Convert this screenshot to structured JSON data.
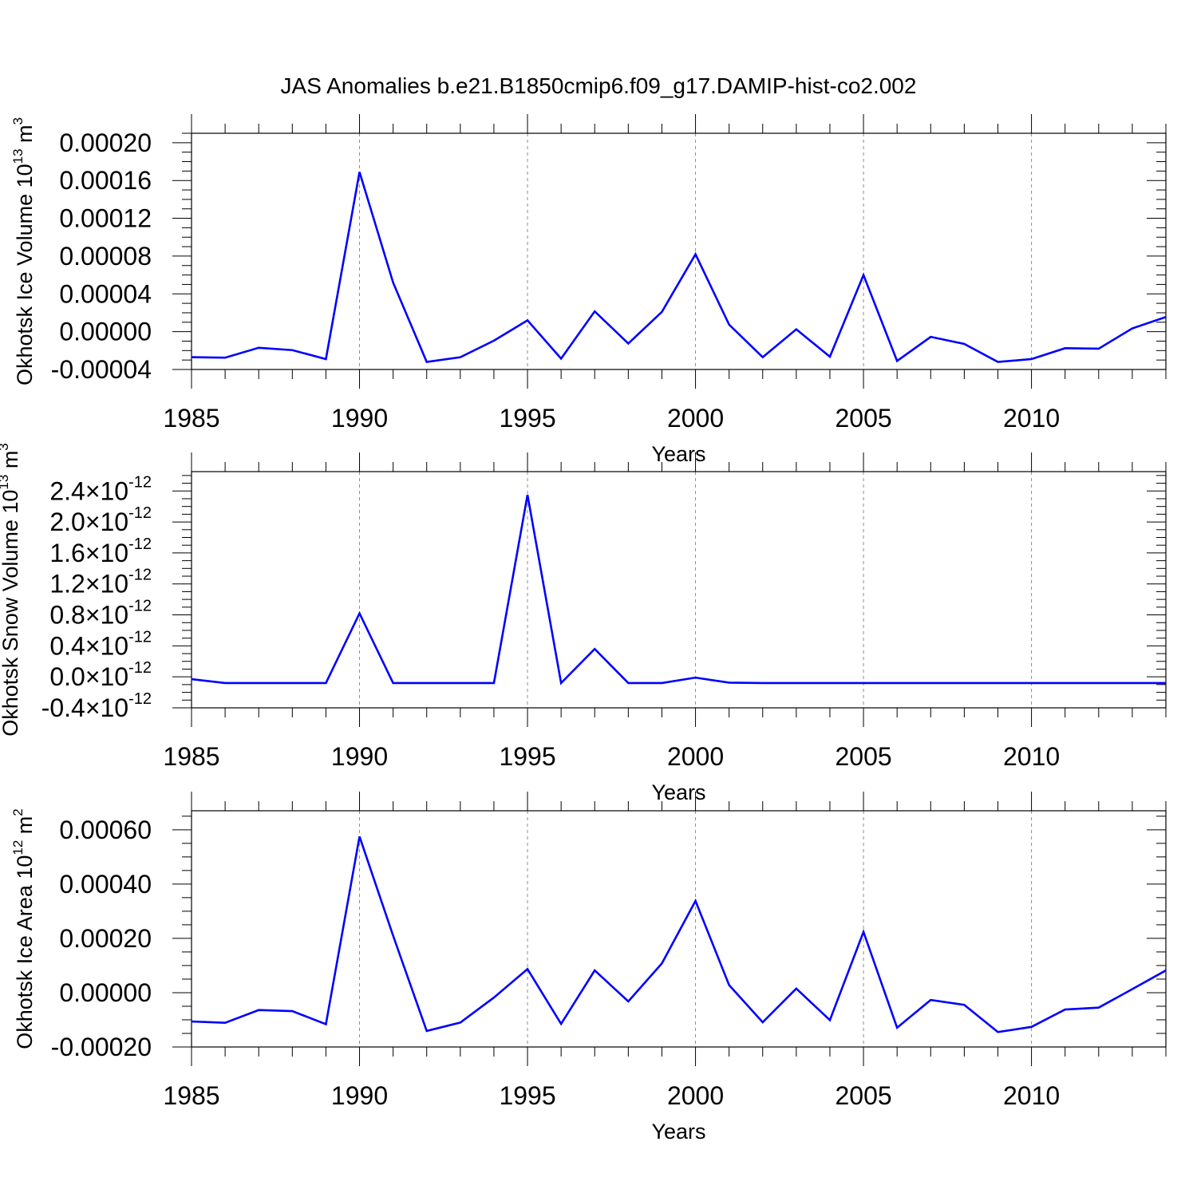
{
  "title": "JAS Anomalies b.e21.B1850cmip6.f09_g17.DAMIP-hist-co2.002",
  "colors": {
    "line": "#0000ff",
    "axis": "#000000",
    "grid": "#8c8c8c"
  },
  "chart_data": [
    {
      "type": "line",
      "title": "",
      "xlabel": "Years",
      "ylabel": {
        "base": "Okhotsk Ice Volume 10",
        "exp": "13",
        "unit": " m",
        "unit_exp": "3"
      },
      "xlim": [
        1985,
        2014
      ],
      "ylim": [
        -4e-05,
        0.0002
      ],
      "ydisplay": [
        -4e-05,
        0.00021
      ],
      "xticks": [
        1985,
        1990,
        1995,
        2000,
        2005,
        2010
      ],
      "xtick_labels": [
        "1985",
        "1990",
        "1995",
        "2000",
        "2005",
        "2010"
      ],
      "yticks": [
        -4e-05,
        0.0,
        4e-05,
        8e-05,
        0.00012,
        0.00016,
        0.0002
      ],
      "ytick_labels": [
        "-0.00004",
        "0.00000",
        "0.00004",
        "0.00008",
        "0.00012",
        "0.00016",
        "0.00020"
      ],
      "ytick_style": "plain",
      "grid": "x-dashed",
      "x": [
        1985,
        1986,
        1987,
        1988,
        1989,
        1990,
        1991,
        1992,
        1993,
        1994,
        1995,
        1996,
        1997,
        1998,
        1999,
        2000,
        2001,
        2002,
        2003,
        2004,
        2005,
        2006,
        2007,
        2008,
        2009,
        2010,
        2011,
        2012,
        2013,
        2014
      ],
      "series": [
        {
          "values": [
            -2.7e-05,
            -2.75e-05,
            -1.7e-05,
            -1.95e-05,
            -2.9e-05,
            0.000169,
            5.2e-05,
            -3.2e-05,
            -2.7e-05,
            -9.5e-06,
            1.2e-05,
            -2.85e-05,
            2.15e-05,
            -1.25e-05,
            2.1e-05,
            8.2e-05,
            7.5e-06,
            -2.7e-05,
            2.5e-06,
            -2.65e-05,
            6e-05,
            -3.1e-05,
            -5.5e-06,
            -1.3e-05,
            -3.2e-05,
            -2.9e-05,
            -1.75e-05,
            -1.8e-05,
            3.5e-06,
            1.55e-05
          ]
        }
      ]
    },
    {
      "type": "line",
      "title": "",
      "xlabel": "Years",
      "ylabel": {
        "base": "Okhotsk Snow Volume 10",
        "exp": "13",
        "unit": " m",
        "unit_exp": "3"
      },
      "xlim": [
        1985,
        2014
      ],
      "ylim": [
        -4e-13,
        2.4e-12
      ],
      "ydisplay": [
        -4e-13,
        2.65e-12
      ],
      "xticks": [
        1985,
        1990,
        1995,
        2000,
        2005,
        2010
      ],
      "xtick_labels": [
        "1985",
        "1990",
        "1995",
        "2000",
        "2005",
        "2010"
      ],
      "yticks": [
        -4e-13,
        0,
        4e-13,
        8e-13,
        1.2e-12,
        1.6e-12,
        2e-12,
        2.4e-12
      ],
      "ytick_labels": [
        "-0.4",
        "0.0",
        "0.4",
        "0.8",
        "1.2",
        "1.6",
        "2.0",
        "2.4"
      ],
      "ytick_sci": {
        "base": "10",
        "exp": "-12"
      },
      "ytick_style": "sci",
      "grid": "x-dashed",
      "x": [
        1985,
        1986,
        1987,
        1988,
        1989,
        1990,
        1991,
        1992,
        1993,
        1994,
        1995,
        1996,
        1997,
        1998,
        1999,
        2000,
        2001,
        2002,
        2003,
        2004,
        2005,
        2006,
        2007,
        2008,
        2009,
        2010,
        2011,
        2012,
        2013,
        2014
      ],
      "series": [
        {
          "values": [
            -3e-14,
            -8e-14,
            -8e-14,
            -8e-14,
            -8e-14,
            8.2e-13,
            -8e-14,
            -8e-14,
            -8e-14,
            -8e-14,
            2.35e-12,
            -8e-14,
            3.6e-13,
            -8e-14,
            -8e-14,
            -1e-14,
            -7.5e-14,
            -8e-14,
            -8e-14,
            -8e-14,
            -8e-14,
            -8e-14,
            -8e-14,
            -8e-14,
            -8e-14,
            -8e-14,
            -8e-14,
            -8e-14,
            -8e-14,
            -8e-14
          ]
        }
      ]
    },
    {
      "type": "line",
      "title": "",
      "xlabel": "Years",
      "ylabel": {
        "base": "Okhotsk Ice Area 10",
        "exp": "12",
        "unit": " m",
        "unit_exp": "2"
      },
      "xlim": [
        1985,
        2014
      ],
      "ylim": [
        -0.0002,
        0.0006
      ],
      "ydisplay": [
        -0.0002,
        0.00067
      ],
      "xticks": [
        1985,
        1990,
        1995,
        2000,
        2005,
        2010
      ],
      "xtick_labels": [
        "1985",
        "1990",
        "1995",
        "2000",
        "2005",
        "2010"
      ],
      "yticks": [
        -0.0002,
        0.0,
        0.0002,
        0.0004,
        0.0006
      ],
      "ytick_labels": [
        "-0.00020",
        "0.00000",
        "0.00020",
        "0.00040",
        "0.00060"
      ],
      "ytick_style": "plain",
      "grid": "x-dashed",
      "x": [
        1985,
        1986,
        1987,
        1988,
        1989,
        1990,
        1991,
        1992,
        1993,
        1994,
        1995,
        1996,
        1997,
        1998,
        1999,
        2000,
        2001,
        2002,
        2003,
        2004,
        2005,
        2006,
        2007,
        2008,
        2009,
        2010,
        2011,
        2012,
        2013,
        2014
      ],
      "series": [
        {
          "values": [
            -0.000106,
            -0.000111,
            -6.4e-05,
            -6.8e-05,
            -0.000116,
            0.000575,
            0.00021,
            -0.000141,
            -0.00011,
            -1.8e-05,
            8.7e-05,
            -0.000115,
            8.2e-05,
            -3.2e-05,
            0.000108,
            0.000338,
            2.8e-05,
            -0.000109,
            1.5e-05,
            -0.000101,
            0.000224,
            -0.000129,
            -2.7e-05,
            -4.5e-05,
            -0.000145,
            -0.000126,
            -6.2e-05,
            -5.5e-05,
            1.3e-05,
            8.2e-05
          ]
        }
      ]
    }
  ]
}
